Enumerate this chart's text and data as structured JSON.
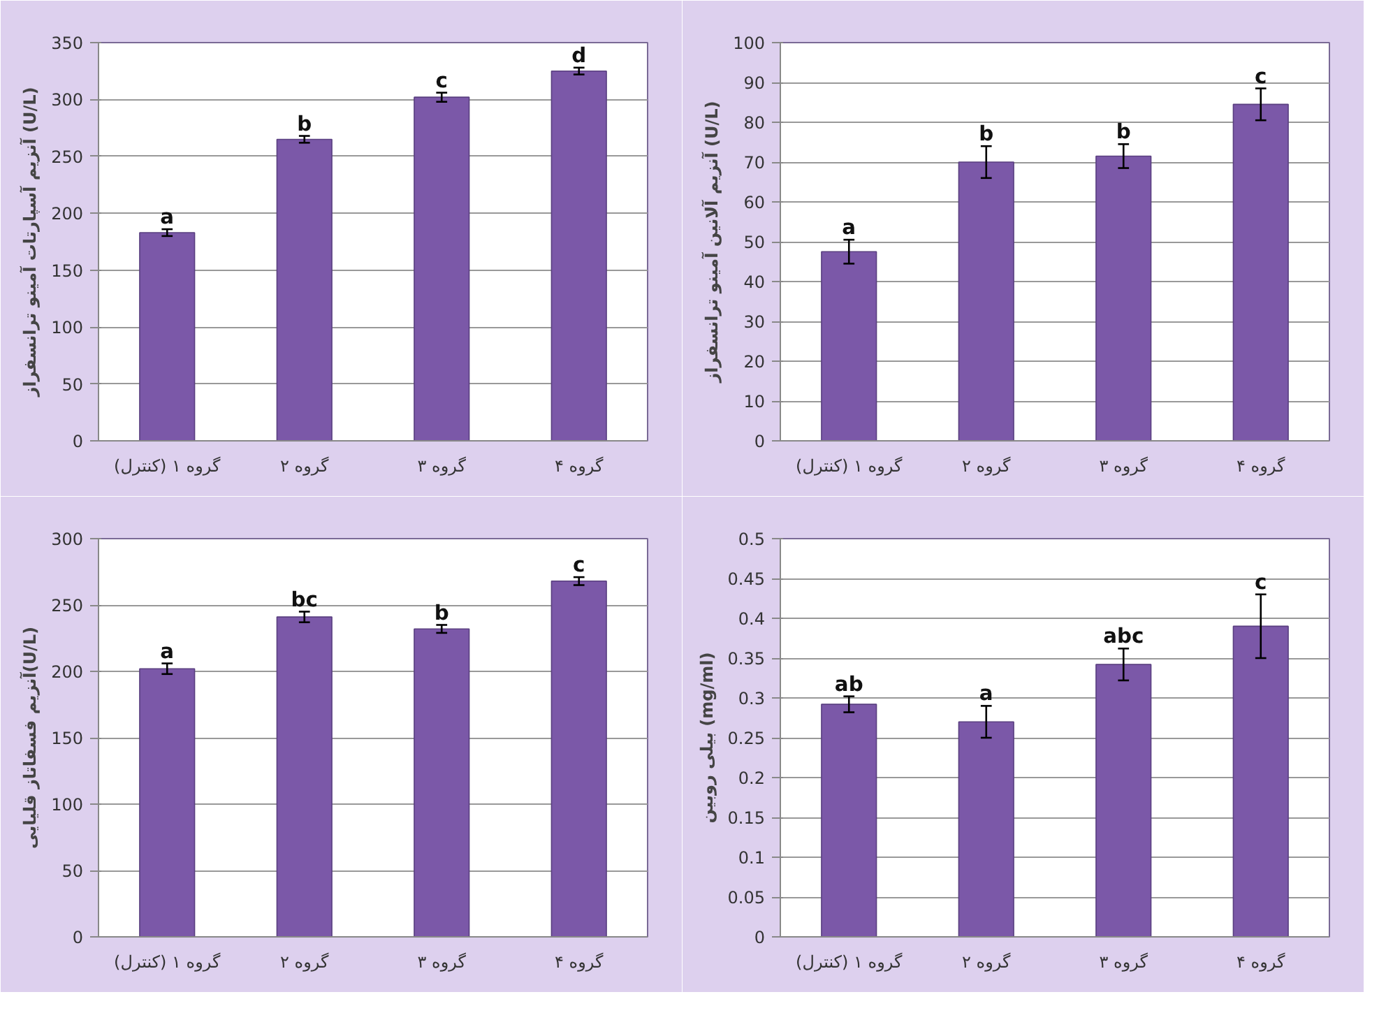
{
  "chart_data": [
    {
      "type": "bar",
      "ylabel": "آنزیم آسپارتات آمینو ترانسفراز (U/L)",
      "categories": [
        "گروه ۱ (کنترل)",
        "گروه ۲",
        "گروه ۳",
        "گروه ۴"
      ],
      "values": [
        183,
        265,
        302,
        325
      ],
      "errors": [
        3,
        3,
        4,
        3
      ],
      "color": "#7b58a8",
      "ylim": [
        0,
        350
      ],
      "yticks": [
        0,
        50,
        100,
        150,
        200,
        250,
        300,
        350
      ],
      "grid": "y",
      "annotations": [
        {
          "text": "a",
          "x": "گروه ۱ (کنترل)",
          "y": 186
        },
        {
          "text": "b",
          "x": "گروه ۲",
          "y": 268
        },
        {
          "text": "c",
          "x": "گروه ۳",
          "y": 306
        },
        {
          "text": "d",
          "x": "گروه ۴",
          "y": 328
        }
      ]
    },
    {
      "type": "bar",
      "ylabel": "آنزیم آلانین آمینو ترانسفراز (U/L)",
      "categories": [
        "گروه ۱ (کنترل)",
        "گروه ۲",
        "گروه ۳",
        "گروه ۴"
      ],
      "values": [
        47.5,
        70,
        71.5,
        84.5
      ],
      "errors": [
        3,
        4,
        3,
        4
      ],
      "color": "#7b58a8",
      "ylim": [
        0,
        100
      ],
      "yticks": [
        0,
        10,
        20,
        30,
        40,
        50,
        60,
        70,
        80,
        90,
        100
      ],
      "grid": "y",
      "annotations": [
        {
          "text": "a",
          "x": "گروه ۱ (کنترل)",
          "y": 50.5
        },
        {
          "text": "b",
          "x": "گروه ۲",
          "y": 74
        },
        {
          "text": "b",
          "x": "گروه ۳",
          "y": 74.5
        },
        {
          "text": "c",
          "x": "گروه ۴",
          "y": 88.5
        }
      ]
    },
    {
      "type": "bar",
      "ylabel": "آنزیم فسفاتاز قلیایی(U/L)",
      "categories": [
        "گروه ۱ (کنترل)",
        "گروه ۲",
        "گروه ۳",
        "گروه ۴"
      ],
      "values": [
        202,
        241,
        232,
        268
      ],
      "errors": [
        4,
        4,
        3,
        3
      ],
      "color": "#7b58a8",
      "ylim": [
        0,
        300
      ],
      "yticks": [
        0,
        50,
        100,
        150,
        200,
        250,
        300
      ],
      "grid": "y",
      "annotations": [
        {
          "text": "a",
          "x": "گروه ۱ (کنترل)",
          "y": 206
        },
        {
          "text": "bc",
          "x": "گروه ۲",
          "y": 245
        },
        {
          "text": "b",
          "x": "گروه ۳",
          "y": 235
        },
        {
          "text": "c",
          "x": "گروه ۴",
          "y": 271
        }
      ]
    },
    {
      "type": "bar",
      "ylabel": "بیلی روبین (mg/ml)",
      "categories": [
        "گروه ۱ (کنترل)",
        "گروه ۲",
        "گروه ۳",
        "گروه ۴"
      ],
      "values": [
        0.292,
        0.27,
        0.342,
        0.39
      ],
      "errors": [
        0.01,
        0.02,
        0.02,
        0.04
      ],
      "color": "#7b58a8",
      "ylim": [
        0,
        0.5
      ],
      "yticks": [
        0,
        0.05,
        0.1,
        0.15,
        0.2,
        0.25,
        0.3,
        0.35,
        0.4,
        0.45,
        0.5
      ],
      "grid": "y",
      "annotations": [
        {
          "text": "ab",
          "x": "گروه ۱ (کنترل)",
          "y": 0.302
        },
        {
          "text": "a",
          "x": "گروه ۲",
          "y": 0.29
        },
        {
          "text": "abc",
          "x": "گروه ۳",
          "y": 0.362
        },
        {
          "text": "c",
          "x": "گروه ۴",
          "y": 0.43
        }
      ]
    }
  ]
}
